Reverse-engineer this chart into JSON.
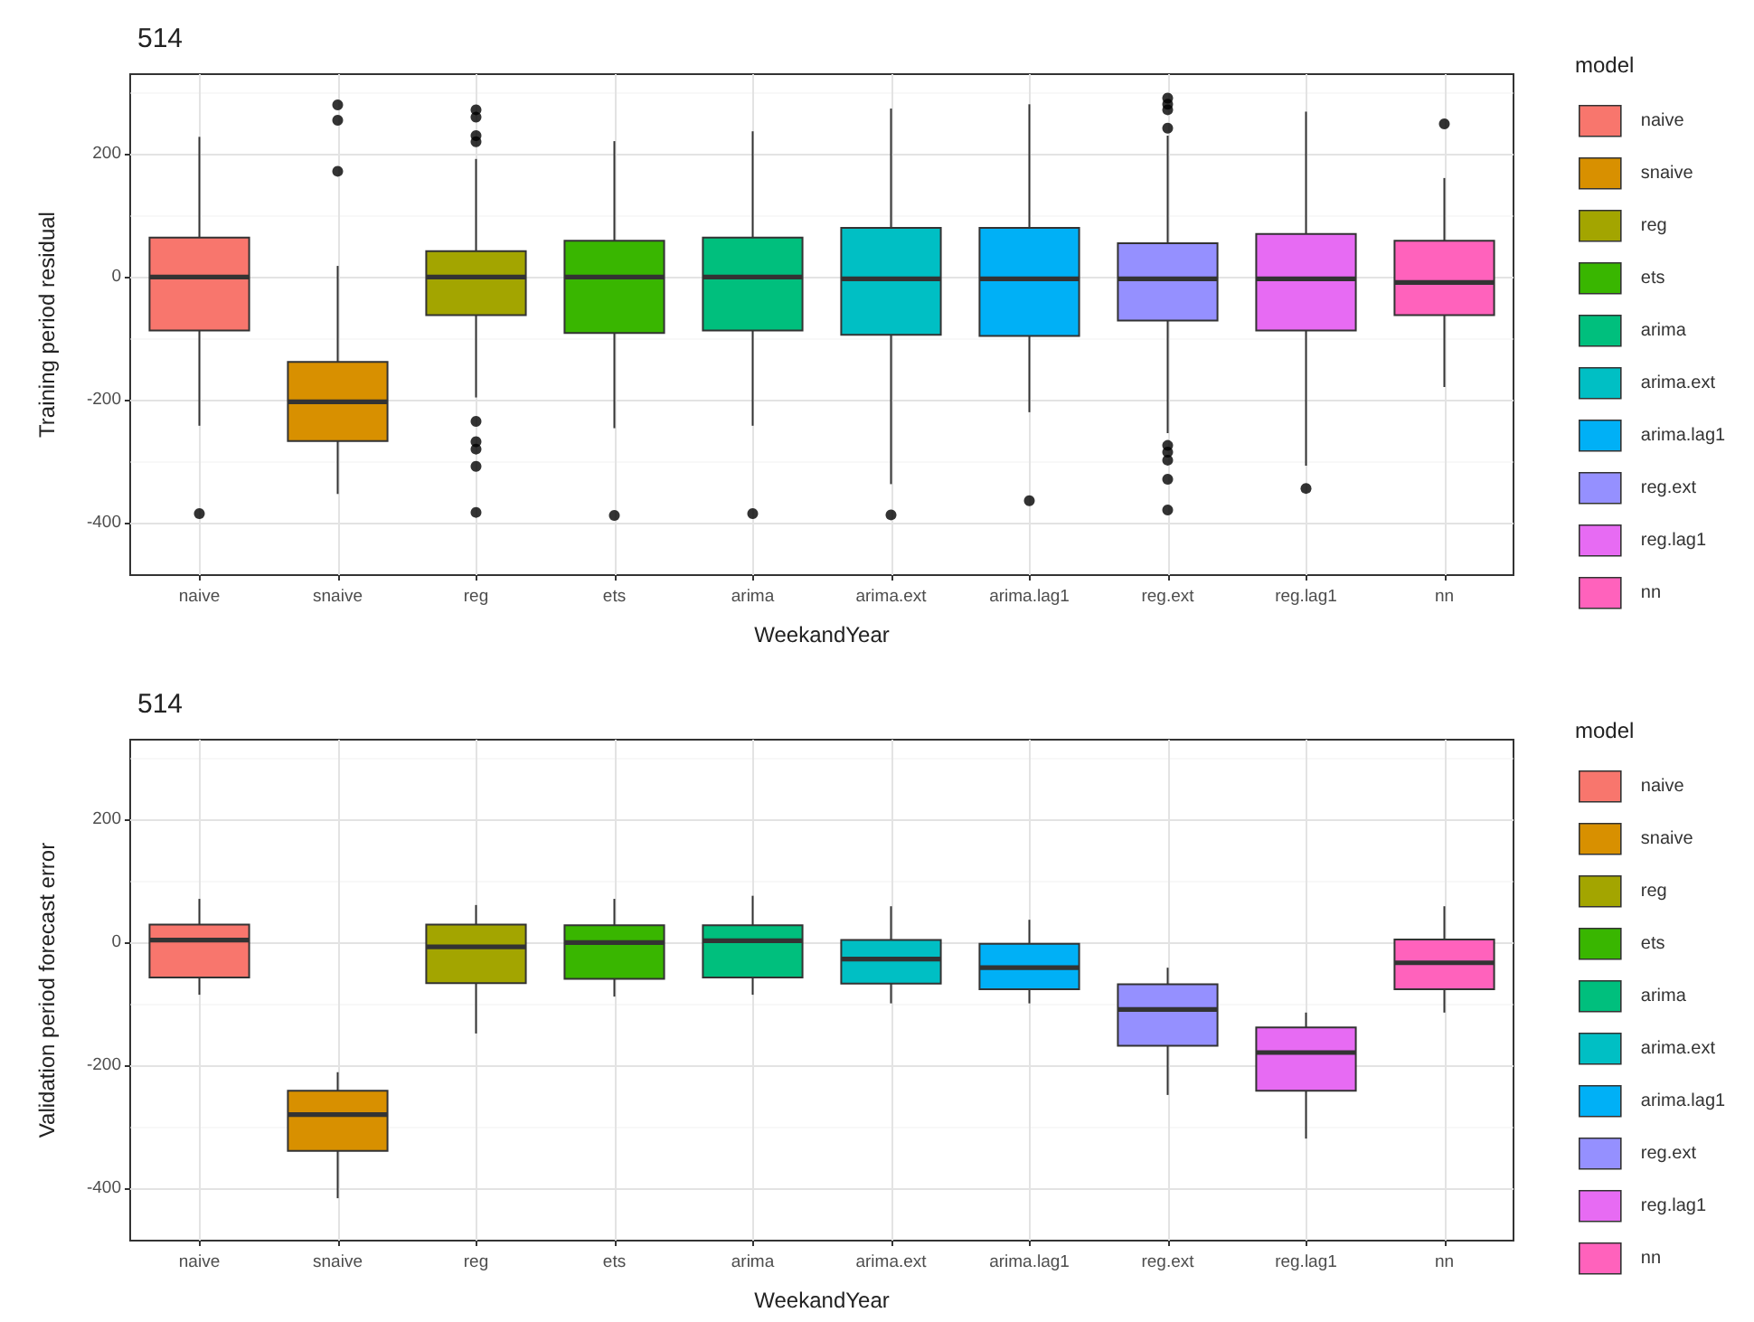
{
  "chart_data": [
    {
      "type": "box",
      "title": "514",
      "xlabel": "WeekandYear",
      "ylabel": "Training period residual",
      "legend_title": "model",
      "categories": [
        "naive",
        "snaive",
        "reg",
        "ets",
        "arima",
        "arima.ext",
        "arima.lag1",
        "reg.ext",
        "reg.lag1",
        "nn"
      ],
      "series": [
        {
          "name": "naive",
          "color": "#f8766d",
          "boxes": [
            {
              "low": -242,
              "q1": -87,
              "median": 0,
              "q3": 64,
              "high": 228,
              "outliers": [
                -385
              ]
            },
            null,
            null,
            null,
            null,
            null,
            null,
            null,
            null,
            null
          ]
        },
        {
          "name": "snaive",
          "color": "#d89000",
          "boxes": [
            null,
            {
              "low": -353,
              "q1": -267,
              "median": -203,
              "q3": -138,
              "high": 18,
              "outliers": [
                280,
                255,
                172
              ]
            },
            null,
            null,
            null,
            null,
            null,
            null,
            null,
            null
          ]
        },
        {
          "name": "reg",
          "color": "#a3a500",
          "boxes": [
            null,
            null,
            {
              "low": -196,
              "q1": -62,
              "median": 0,
              "q3": 42,
              "high": 192,
              "outliers": [
                272,
                260,
                230,
                220,
                -235,
                -268,
                -280,
                -308,
                -383
              ]
            },
            null,
            null,
            null,
            null,
            null,
            null,
            null
          ]
        },
        {
          "name": "ets",
          "color": "#39b600",
          "boxes": [
            null,
            null,
            null,
            {
              "low": -246,
              "q1": -91,
              "median": 0,
              "q3": 59,
              "high": 221,
              "outliers": [
                -388
              ]
            },
            null,
            null,
            null,
            null,
            null,
            null
          ]
        },
        {
          "name": "arima",
          "color": "#00bf7d",
          "boxes": [
            null,
            null,
            null,
            null,
            {
              "low": -242,
              "q1": -87,
              "median": 0,
              "q3": 64,
              "high": 237,
              "outliers": [
                -385
              ]
            },
            null,
            null,
            null,
            null,
            null
          ]
        },
        {
          "name": "arima.ext",
          "color": "#00bfc4",
          "boxes": [
            null,
            null,
            null,
            null,
            null,
            {
              "low": -337,
              "q1": -94,
              "median": -3,
              "q3": 80,
              "high": 274,
              "outliers": [
                -387
              ]
            },
            null,
            null,
            null,
            null
          ]
        },
        {
          "name": "arima.lag1",
          "color": "#00b0f6",
          "boxes": [
            null,
            null,
            null,
            null,
            null,
            null,
            {
              "low": -220,
              "q1": -96,
              "median": -3,
              "q3": 80,
              "high": 281,
              "outliers": [
                -364
              ]
            },
            null,
            null,
            null
          ]
        },
        {
          "name": "reg.ext",
          "color": "#9590ff",
          "boxes": [
            null,
            null,
            null,
            null,
            null,
            null,
            null,
            {
              "low": -254,
              "q1": -71,
              "median": -3,
              "q3": 55,
              "high": 230,
              "outliers": [
                291,
                281,
                272,
                242,
                -274,
                -285,
                -298,
                -329,
                -379
              ]
            },
            null,
            null
          ]
        },
        {
          "name": "reg.lag1",
          "color": "#e76bf3",
          "boxes": [
            null,
            null,
            null,
            null,
            null,
            null,
            null,
            null,
            {
              "low": -307,
              "q1": -87,
              "median": -3,
              "q3": 70,
              "high": 269,
              "outliers": [
                -344
              ]
            },
            null
          ]
        },
        {
          "name": "nn",
          "color": "#ff62bc",
          "boxes": [
            null,
            null,
            null,
            null,
            null,
            null,
            null,
            null,
            null,
            {
              "low": -179,
              "q1": -62,
              "median": -9,
              "q3": 59,
              "high": 161,
              "outliers": [
                249
              ]
            }
          ]
        }
      ],
      "ylim": [
        -485,
        330
      ],
      "yticks": [
        -400,
        -200,
        0,
        200
      ],
      "grid": true,
      "legend": "right"
    },
    {
      "type": "box",
      "title": "514",
      "xlabel": "WeekandYear",
      "ylabel": "Validation period forecast error",
      "legend_title": "model",
      "categories": [
        "naive",
        "snaive",
        "reg",
        "ets",
        "arima",
        "arima.ext",
        "arima.lag1",
        "reg.ext",
        "reg.lag1",
        "nn"
      ],
      "series": [
        {
          "name": "naive",
          "color": "#f8766d",
          "boxes": [
            {
              "low": -85,
              "q1": -57,
              "median": 4,
              "q3": 29,
              "high": 71
            },
            null,
            null,
            null,
            null,
            null,
            null,
            null,
            null,
            null
          ]
        },
        {
          "name": "snaive",
          "color": "#d89000",
          "boxes": [
            null,
            {
              "low": -416,
              "q1": -339,
              "median": -280,
              "q3": -241,
              "high": -211
            },
            null,
            null,
            null,
            null,
            null,
            null,
            null,
            null
          ]
        },
        {
          "name": "reg",
          "color": "#a3a500",
          "boxes": [
            null,
            null,
            {
              "low": -148,
              "q1": -66,
              "median": -7,
              "q3": 29,
              "high": 61
            },
            null,
            null,
            null,
            null,
            null,
            null,
            null
          ]
        },
        {
          "name": "ets",
          "color": "#39b600",
          "boxes": [
            null,
            null,
            null,
            {
              "low": -88,
              "q1": -59,
              "median": 0,
              "q3": 28,
              "high": 71
            },
            null,
            null,
            null,
            null,
            null,
            null
          ]
        },
        {
          "name": "arima",
          "color": "#00bf7d",
          "boxes": [
            null,
            null,
            null,
            null,
            {
              "low": -85,
              "q1": -57,
              "median": 3,
              "q3": 28,
              "high": 76
            },
            null,
            null,
            null,
            null,
            null
          ]
        },
        {
          "name": "arima.ext",
          "color": "#00bfc4",
          "boxes": [
            null,
            null,
            null,
            null,
            null,
            {
              "low": -99,
              "q1": -67,
              "median": -27,
              "q3": 4,
              "high": 59
            },
            null,
            null,
            null,
            null
          ]
        },
        {
          "name": "arima.lag1",
          "color": "#00b0f6",
          "boxes": [
            null,
            null,
            null,
            null,
            null,
            null,
            {
              "low": -99,
              "q1": -76,
              "median": -41,
              "q3": -2,
              "high": 37
            },
            null,
            null,
            null
          ]
        },
        {
          "name": "reg.ext",
          "color": "#9590ff",
          "boxes": [
            null,
            null,
            null,
            null,
            null,
            null,
            null,
            {
              "low": -248,
              "q1": -168,
              "median": -109,
              "q3": -68,
              "high": -41
            },
            null,
            null
          ]
        },
        {
          "name": "reg.lag1",
          "color": "#e76bf3",
          "boxes": [
            null,
            null,
            null,
            null,
            null,
            null,
            null,
            null,
            {
              "low": -319,
              "q1": -241,
              "median": -179,
              "q3": -138,
              "high": -114
            },
            null
          ]
        },
        {
          "name": "nn",
          "color": "#ff62bc",
          "boxes": [
            null,
            null,
            null,
            null,
            null,
            null,
            null,
            null,
            null,
            {
              "low": -114,
              "q1": -76,
              "median": -33,
              "q3": 5,
              "high": 59
            }
          ]
        }
      ],
      "ylim": [
        -485,
        330
      ],
      "yticks": [
        -400,
        -200,
        0,
        200
      ],
      "grid": true,
      "legend": "right"
    }
  ]
}
